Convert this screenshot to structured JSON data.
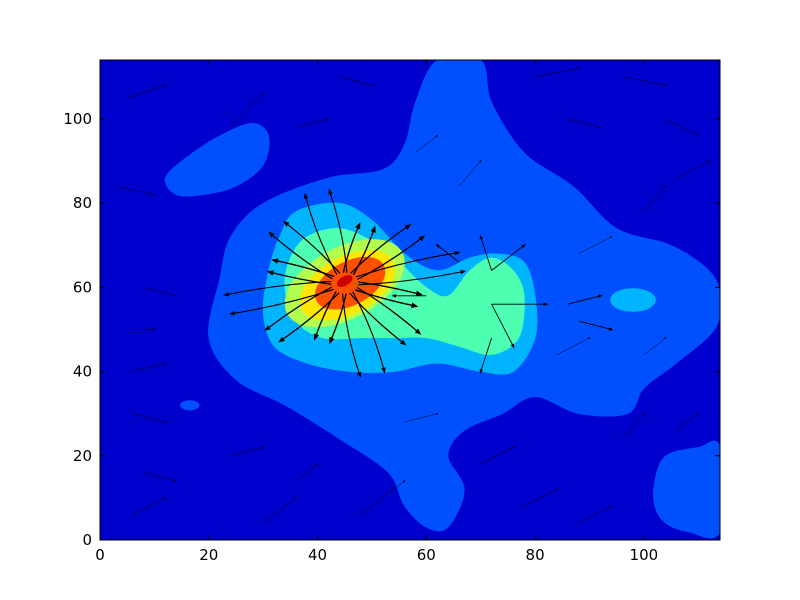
{
  "chart_data": {
    "type": "heatmap",
    "subtype": "filled-contour-with-streamlines",
    "title": "",
    "xlabel": "",
    "ylabel": "",
    "xlim": [
      0,
      114
    ],
    "ylim": [
      0,
      114
    ],
    "x_ticks": [
      0,
      20,
      40,
      60,
      80,
      100
    ],
    "y_ticks": [
      0,
      20,
      40,
      60,
      80,
      100
    ],
    "x_tick_labels": [
      "0",
      "20",
      "40",
      "60",
      "80",
      "100"
    ],
    "y_tick_labels": [
      "0",
      "20",
      "40",
      "60",
      "80",
      "100"
    ],
    "grid": false,
    "legend": "none",
    "colormap": "jet",
    "levels": [
      {
        "level": 0,
        "color": "#0000cd"
      },
      {
        "level": 1,
        "color": "#0050ff"
      },
      {
        "level": 2,
        "color": "#00b4ff"
      },
      {
        "level": 3,
        "color": "#4dffb0"
      },
      {
        "level": 4,
        "color": "#b4ff4d"
      },
      {
        "level": 5,
        "color": "#ffe600"
      },
      {
        "level": 6,
        "color": "#ff9600"
      },
      {
        "level": 7,
        "color": "#ff5000"
      },
      {
        "level": 8,
        "color": "#cd0000"
      }
    ],
    "peaks": [
      {
        "x": 45,
        "y": 61,
        "max_level": 8
      },
      {
        "x": 72,
        "y": 56,
        "max_level": 3
      },
      {
        "x": 98,
        "y": 57,
        "max_level": 2
      },
      {
        "x": 20,
        "y": 90,
        "max_level": 1
      },
      {
        "x": 107,
        "y": 14,
        "max_level": 1
      },
      {
        "x": 61,
        "y": 8,
        "max_level": 1
      },
      {
        "x": 16,
        "y": 32,
        "max_level": 1
      }
    ],
    "streamline_source": {
      "x": 45,
      "y": 61
    },
    "streamline_color": "#000000"
  }
}
